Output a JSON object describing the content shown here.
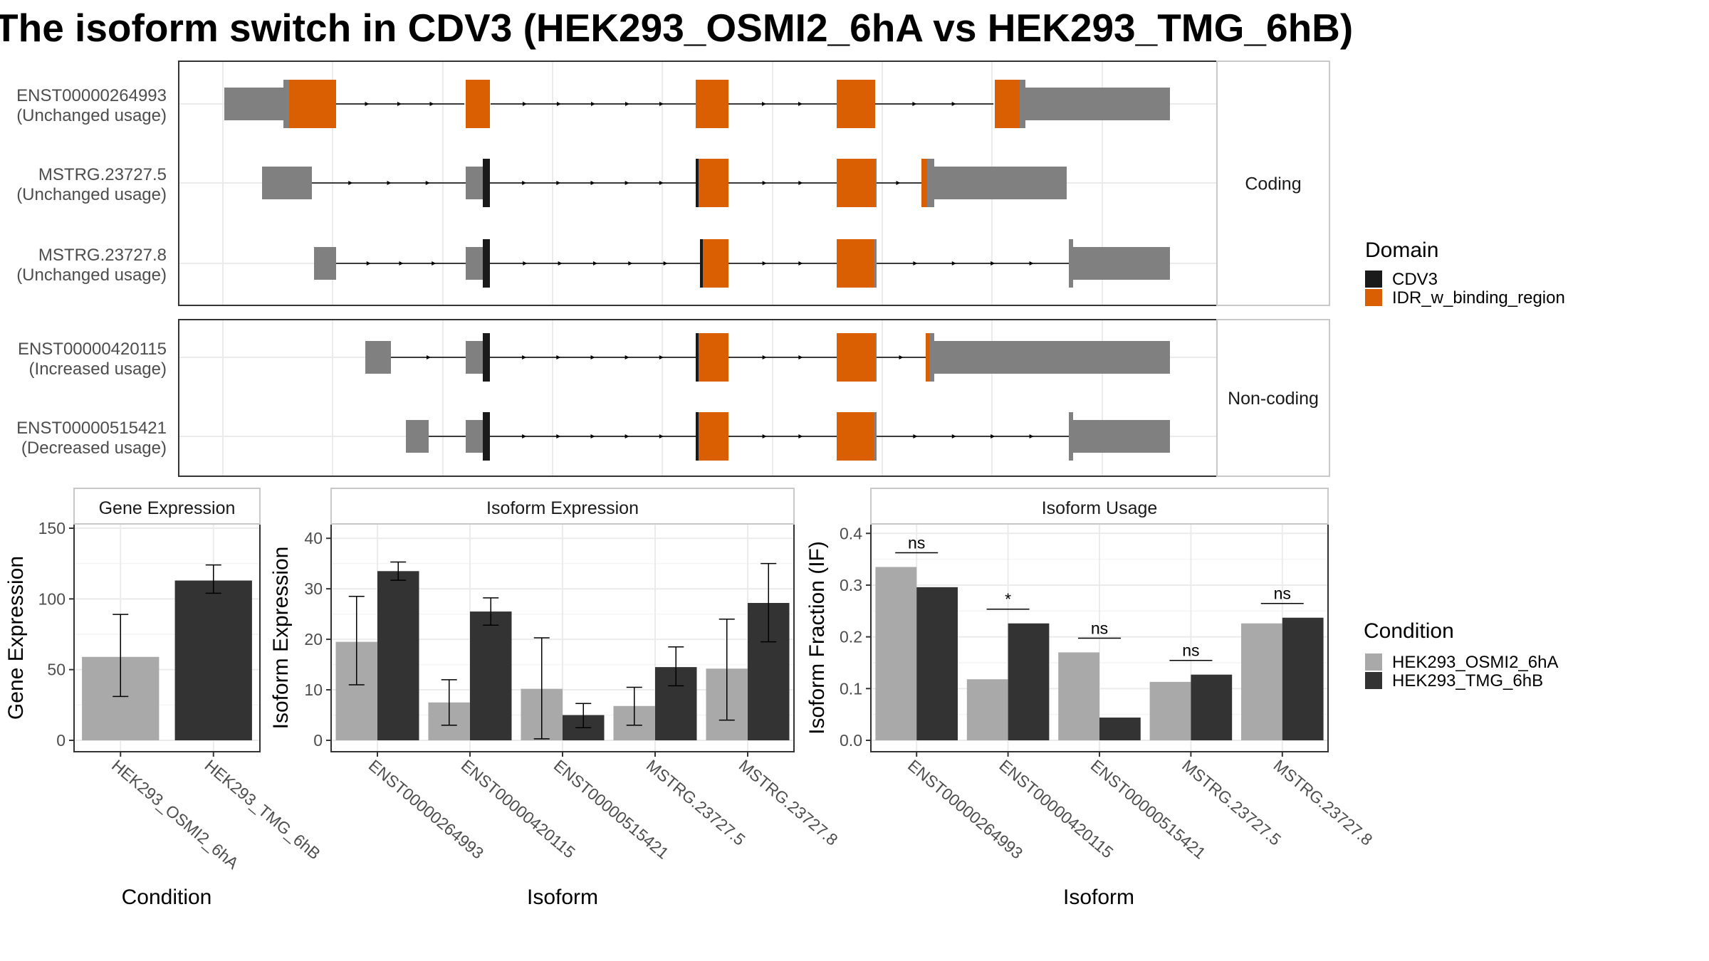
{
  "title": "The isoform switch in CDV3 (HEK293_OSMI2_6hA vs HEK293_TMG_6hB)",
  "colors": {
    "utr": "#808080",
    "cdv3": "#1a1a1a",
    "idr": "#d95f02",
    "cond_a": "#a9a9a9",
    "cond_b": "#333333",
    "panel_border": "#333333",
    "strip_fill": "#ffffff",
    "grid": "#ebebeb"
  },
  "transcripts": {
    "facets": [
      {
        "label": "Coding",
        "rows": [
          {
            "id": "ENST00000264993",
            "usage": "(Unchanged usage)"
          },
          {
            "id": "MSTRG.23727.5",
            "usage": "(Unchanged usage)"
          },
          {
            "id": "MSTRG.23727.8",
            "usage": "(Unchanged usage)"
          }
        ]
      },
      {
        "label": "Non-coding",
        "rows": [
          {
            "id": "ENST00000420115",
            "usage": "(Increased usage)"
          },
          {
            "id": "ENST00000515421",
            "usage": "(Decreased usage)"
          }
        ]
      }
    ],
    "legend": {
      "title": "Domain",
      "items": [
        {
          "label": "CDV3",
          "color": "#1a1a1a"
        },
        {
          "label": "IDR_w_binding_region",
          "color": "#d95f02"
        }
      ]
    }
  },
  "condition_legend": {
    "title": "Condition",
    "items": [
      {
        "label": "HEK293_OSMI2_6hA",
        "color": "#a9a9a9"
      },
      {
        "label": "HEK293_TMG_6hB",
        "color": "#333333"
      }
    ]
  },
  "chart_data": [
    {
      "type": "bar",
      "title": "Gene Expression",
      "xlabel": "Condition",
      "ylabel": "Gene Expression",
      "categories": [
        "HEK293_OSMI2_6hA",
        "HEK293_TMG_6hB"
      ],
      "values": [
        59,
        113
      ],
      "errors": [
        [
          31,
          89
        ],
        [
          104,
          124
        ]
      ],
      "ylim": [
        0,
        150
      ],
      "yticks": [
        0,
        50,
        100,
        150
      ]
    },
    {
      "type": "bar",
      "title": "Isoform Expression",
      "xlabel": "Isoform",
      "ylabel": "Isoform Expression",
      "categories": [
        "ENST00000264993",
        "ENST00000420115",
        "ENST00000515421",
        "MSTRG.23727.5",
        "MSTRG.23727.8"
      ],
      "series": [
        {
          "name": "HEK293_OSMI2_6hA",
          "values": [
            19.5,
            7.5,
            10.2,
            6.8,
            14.2
          ],
          "errors": [
            [
              11,
              28.5
            ],
            [
              3,
              12
            ],
            [
              0.3,
              20.3
            ],
            [
              3,
              10.5
            ],
            [
              4,
              24
            ]
          ]
        },
        {
          "name": "HEK293_TMG_6hB",
          "values": [
            33.5,
            25.5,
            5,
            14.5,
            27.2
          ],
          "errors": [
            [
              31.7,
              35.3
            ],
            [
              22.8,
              28.2
            ],
            [
              2.5,
              7.3
            ],
            [
              10.8,
              18.5
            ],
            [
              19.5,
              35
            ]
          ]
        }
      ],
      "ylim": [
        0,
        42
      ],
      "yticks": [
        0,
        10,
        20,
        30,
        40
      ]
    },
    {
      "type": "bar",
      "title": "Isoform Usage",
      "xlabel": "Isoform",
      "ylabel": "Isoform Fraction (IF)",
      "categories": [
        "ENST00000264993",
        "ENST00000420115",
        "ENST00000515421",
        "MSTRG.23727.5",
        "MSTRG.23727.8"
      ],
      "series": [
        {
          "name": "HEK293_OSMI2_6hA",
          "values": [
            0.335,
            0.118,
            0.17,
            0.113,
            0.226
          ]
        },
        {
          "name": "HEK293_TMG_6hB",
          "values": [
            0.296,
            0.226,
            0.044,
            0.127,
            0.237
          ]
        }
      ],
      "significance": [
        "ns",
        "*",
        "ns",
        "ns",
        "ns"
      ],
      "ylim": [
        0,
        0.41
      ],
      "yticks": [
        "0.0",
        "0.1",
        "0.2",
        "0.3",
        "0.4"
      ]
    }
  ]
}
